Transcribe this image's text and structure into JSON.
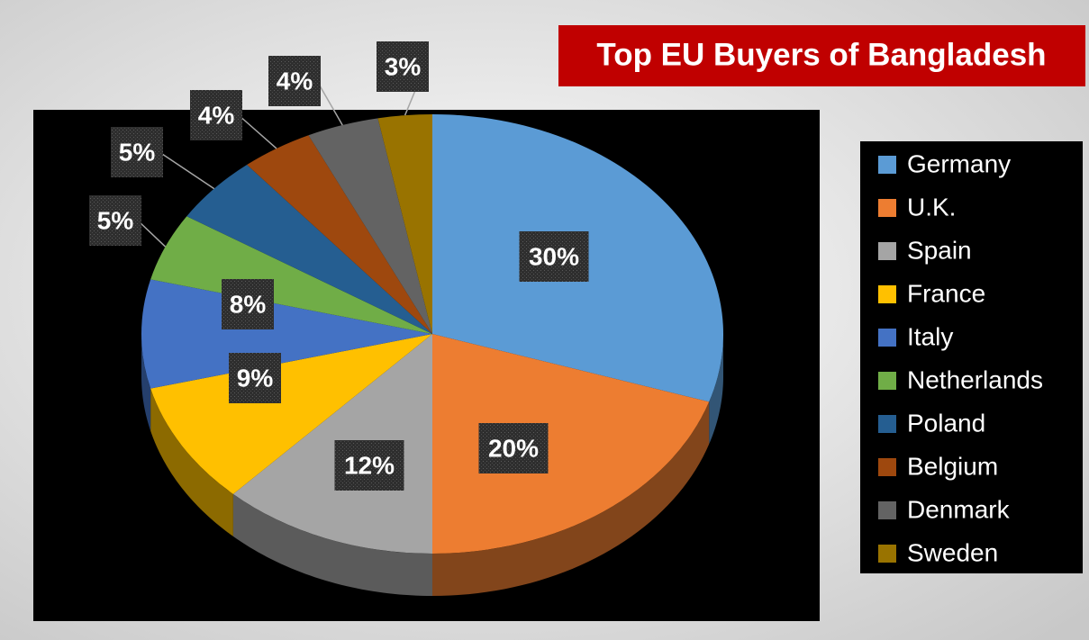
{
  "chart_data": {
    "type": "pie",
    "title": "Top EU Buyers of Bangladesh",
    "categories": [
      "Germany",
      "U.K.",
      "Spain",
      "France",
      "Italy",
      "Netherlands",
      "Poland",
      "Belgium",
      "Denmark",
      "Sweden"
    ],
    "values": [
      30,
      20,
      12,
      9,
      8,
      5,
      5,
      4,
      4,
      3
    ],
    "value_labels": [
      "30%",
      "20%",
      "12%",
      "9%",
      "8%",
      "5%",
      "5%",
      "4%",
      "4%",
      "3%"
    ],
    "colors": [
      "#5b9bd5",
      "#ed7d31",
      "#a5a5a5",
      "#ffc000",
      "#4472c4",
      "#70ad47",
      "#255e91",
      "#9e480e",
      "#636363",
      "#997300"
    ],
    "legend": "right"
  }
}
